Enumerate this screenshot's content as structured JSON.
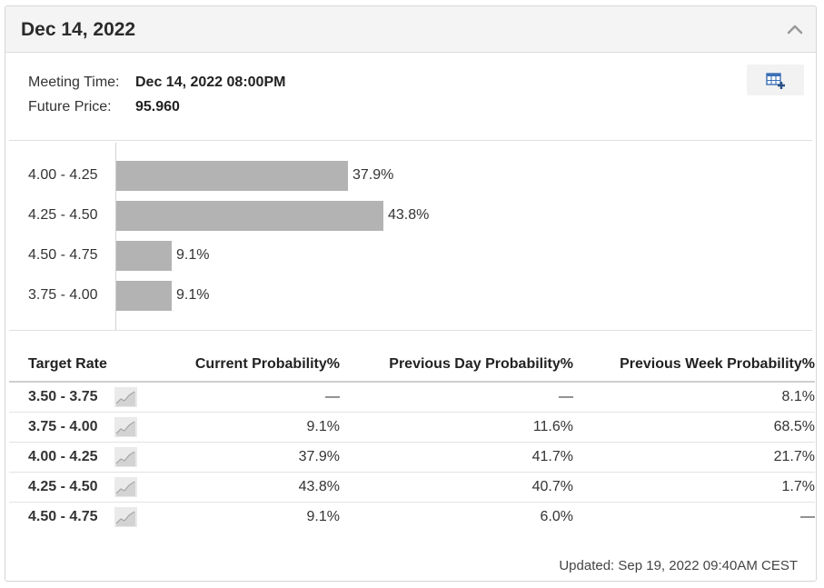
{
  "header": {
    "title": "Dec 14, 2022",
    "collapse_icon": "chevron-up-icon"
  },
  "info": {
    "meeting_time_label": "Meeting Time:",
    "meeting_time_value": "Dec 14, 2022 08:00PM",
    "future_price_label": "Future Price:",
    "future_price_value": "95.960",
    "export_icon": "table-add-icon"
  },
  "chart_data": {
    "type": "bar",
    "orientation": "horizontal",
    "categories": [
      "4.00 - 4.25",
      "4.25 - 4.50",
      "4.50 - 4.75",
      "3.75 - 4.00"
    ],
    "values": [
      37.9,
      43.8,
      9.1,
      9.1
    ],
    "value_labels": [
      "37.9%",
      "43.8%",
      "9.1%",
      "9.1%"
    ],
    "bar_color": "#b3b3b3"
  },
  "table": {
    "headers": [
      "Target Rate",
      "Current Probability%",
      "Previous Day Probability%",
      "Previous Week Probability%"
    ],
    "rows": [
      {
        "rate": "3.50 - 3.75",
        "current": "—",
        "prev_day": "—",
        "prev_week": "8.1%"
      },
      {
        "rate": "3.75 - 4.00",
        "current": "9.1%",
        "prev_day": "11.6%",
        "prev_week": "68.5%"
      },
      {
        "rate": "4.00 - 4.25",
        "current": "37.9%",
        "prev_day": "41.7%",
        "prev_week": "21.7%"
      },
      {
        "rate": "4.25 - 4.50",
        "current": "43.8%",
        "prev_day": "40.7%",
        "prev_week": "1.7%"
      },
      {
        "rate": "4.50 - 4.75",
        "current": "9.1%",
        "prev_day": "6.0%",
        "prev_week": "—"
      }
    ],
    "spark_icon": "sparkline-chart-icon"
  },
  "footer": {
    "updated": "Updated: Sep 19, 2022 09:40AM CEST"
  }
}
